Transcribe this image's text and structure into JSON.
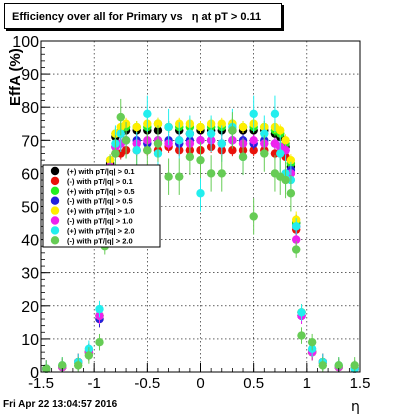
{
  "chart_data": {
    "type": "scatter",
    "title": "Efficiency over all for Primary vs   η at pT > 0.11",
    "xlabel": "η",
    "ylabel": "EffA (%)",
    "xlim": [
      -1.5,
      1.5
    ],
    "ylim": [
      0,
      100
    ],
    "x_ticks": [
      "-1.5",
      "-1",
      "-0.5",
      "0",
      "0.5",
      "1",
      "1.5"
    ],
    "y_ticks": [
      "0",
      "10",
      "20",
      "30",
      "40",
      "50",
      "60",
      "70",
      "80",
      "90",
      "100"
    ],
    "grid": true,
    "legend_position": "middle-left",
    "series": [
      {
        "name": "(+) with pT/|q| > 0.1",
        "color": "#000000",
        "x": [
          -1.45,
          -1.3,
          -1.15,
          -1.05,
          -0.95,
          -0.9,
          -0.85,
          -0.8,
          -0.75,
          -0.7,
          -0.6,
          -0.5,
          -0.4,
          -0.3,
          -0.2,
          -0.1,
          0.0,
          0.1,
          0.2,
          0.3,
          0.4,
          0.5,
          0.6,
          0.7,
          0.75,
          0.8,
          0.85,
          0.9,
          0.95,
          1.05,
          1.15,
          1.3,
          1.45
        ],
        "y": [
          1,
          1.5,
          3,
          6,
          17,
          45,
          63,
          71,
          72,
          73,
          73,
          73,
          73,
          74,
          73,
          72,
          73,
          73,
          73,
          73,
          73,
          73,
          73,
          72,
          71,
          68,
          62,
          45,
          18,
          6,
          3,
          1.5,
          1
        ]
      },
      {
        "name": "(-) with pT/|q| > 0.1",
        "color": "#e8120a",
        "x": [
          -1.45,
          -1.3,
          -1.15,
          -1.05,
          -0.95,
          -0.9,
          -0.85,
          -0.8,
          -0.75,
          -0.7,
          -0.6,
          -0.5,
          -0.4,
          -0.3,
          -0.2,
          -0.1,
          0.0,
          0.1,
          0.2,
          0.3,
          0.4,
          0.5,
          0.6,
          0.7,
          0.75,
          0.8,
          0.85,
          0.9,
          0.95,
          1.05,
          1.15,
          1.3,
          1.45
        ],
        "y": [
          1,
          1.5,
          3,
          6,
          16,
          43,
          61,
          66,
          66,
          67,
          67,
          67,
          67,
          68,
          67,
          67,
          67,
          68,
          67,
          67,
          67,
          67,
          67,
          66,
          66,
          65,
          60,
          43,
          17,
          6,
          3,
          1.5,
          1
        ]
      },
      {
        "name": "(+) with pT/|q| > 0.5",
        "color": "#22ee22",
        "x": [
          -1.45,
          -1.3,
          -1.15,
          -1.05,
          -0.95,
          -0.9,
          -0.85,
          -0.8,
          -0.75,
          -0.7,
          -0.6,
          -0.5,
          -0.4,
          -0.3,
          -0.2,
          -0.1,
          0.0,
          0.1,
          0.2,
          0.3,
          0.4,
          0.5,
          0.6,
          0.7,
          0.75,
          0.8,
          0.85,
          0.9,
          0.95,
          1.05,
          1.15,
          1.3,
          1.45
        ],
        "y": [
          1,
          1.5,
          3,
          6,
          17,
          45,
          64,
          72,
          73,
          74,
          74,
          74,
          75,
          74,
          74,
          74,
          74,
          74,
          74,
          75,
          74,
          74,
          74,
          73,
          72,
          69,
          63,
          45,
          18,
          6,
          3,
          1.5,
          1
        ]
      },
      {
        "name": "(-) with pT/|q| > 0.5",
        "color": "#2222dd",
        "x": [
          -1.45,
          -1.3,
          -1.15,
          -1.05,
          -0.95,
          -0.9,
          -0.85,
          -0.8,
          -0.75,
          -0.7,
          -0.6,
          -0.5,
          -0.4,
          -0.3,
          -0.2,
          -0.1,
          0.0,
          0.1,
          0.2,
          0.3,
          0.4,
          0.5,
          0.6,
          0.7,
          0.75,
          0.8,
          0.85,
          0.9,
          0.95,
          1.05,
          1.15,
          1.3,
          1.45
        ],
        "y": [
          1,
          1.5,
          3,
          6,
          16,
          44,
          62,
          68,
          69,
          70,
          70,
          69,
          70,
          70,
          69,
          70,
          70,
          70,
          69,
          70,
          70,
          69,
          70,
          69,
          68,
          67,
          61,
          44,
          17,
          6,
          3,
          1.5,
          1
        ]
      },
      {
        "name": "(+) with pT/|q| > 1.0",
        "color": "#ffee00",
        "x": [
          -1.45,
          -1.3,
          -1.15,
          -1.05,
          -0.95,
          -0.9,
          -0.85,
          -0.8,
          -0.75,
          -0.7,
          -0.6,
          -0.5,
          -0.4,
          -0.3,
          -0.2,
          -0.1,
          0.0,
          0.1,
          0.2,
          0.3,
          0.4,
          0.5,
          0.6,
          0.7,
          0.75,
          0.8,
          0.85,
          0.9,
          0.95,
          1.05,
          1.15,
          1.3,
          1.45
        ],
        "y": [
          1,
          1.5,
          3,
          6,
          17,
          46,
          64,
          72,
          74,
          75,
          74,
          75,
          75,
          74,
          75,
          75,
          74,
          75,
          75,
          75,
          74,
          75,
          74,
          74,
          73,
          70,
          64,
          46,
          18,
          6,
          3,
          1.5,
          1
        ]
      },
      {
        "name": "(-) with pT/|q| > 1.0",
        "color": "#ee22ee",
        "x": [
          -1.45,
          -1.3,
          -1.15,
          -1.05,
          -0.95,
          -0.9,
          -0.85,
          -0.8,
          -0.75,
          -0.7,
          -0.6,
          -0.5,
          -0.4,
          -0.3,
          -0.2,
          -0.1,
          0.0,
          0.1,
          0.2,
          0.3,
          0.4,
          0.5,
          0.6,
          0.7,
          0.75,
          0.8,
          0.85,
          0.9,
          0.95,
          1.05,
          1.15,
          1.3,
          1.45
        ],
        "y": [
          1,
          1.5,
          3,
          6,
          17,
          44,
          62,
          68,
          69,
          70,
          69,
          70,
          70,
          69,
          70,
          69,
          70,
          70,
          69,
          70,
          69,
          70,
          69,
          69,
          68,
          67,
          60,
          40,
          17,
          6,
          3,
          1.5,
          1
        ]
      },
      {
        "name": "(+) with pT/|q| > 2.0",
        "color": "#22eeee",
        "x": [
          -1.45,
          -1.3,
          -1.15,
          -1.05,
          -0.95,
          -0.9,
          -0.85,
          -0.8,
          -0.75,
          -0.7,
          -0.6,
          -0.5,
          -0.4,
          -0.3,
          -0.2,
          -0.1,
          0.0,
          0.1,
          0.2,
          0.3,
          0.4,
          0.5,
          0.6,
          0.7,
          0.75,
          0.8,
          0.85,
          0.9,
          0.95,
          1.05,
          1.15,
          1.3,
          1.45
        ],
        "y": [
          1,
          2,
          3,
          7,
          19,
          48,
          60,
          69,
          72,
          70,
          67,
          78,
          66,
          74,
          70,
          72,
          54,
          72,
          69,
          74,
          65,
          78,
          72,
          78,
          66,
          60,
          58,
          44,
          18,
          7,
          3,
          2,
          1
        ]
      },
      {
        "name": "(-) with pT/|q| > 2.0",
        "color": "#66cc55",
        "x": [
          -1.45,
          -1.3,
          -1.15,
          -1.05,
          -0.95,
          -0.9,
          -0.85,
          -0.8,
          -0.75,
          -0.7,
          -0.6,
          -0.5,
          -0.4,
          -0.3,
          -0.2,
          -0.1,
          0.0,
          0.1,
          0.2,
          0.3,
          0.4,
          0.5,
          0.6,
          0.7,
          0.75,
          0.8,
          0.85,
          0.9,
          0.95,
          1.05,
          1.15,
          1.3,
          1.45
        ],
        "y": [
          1,
          2,
          2,
          5,
          9,
          38,
          60,
          66,
          77,
          70,
          60,
          67,
          69,
          59,
          59,
          65,
          64,
          60,
          60,
          73,
          65,
          47,
          66,
          60,
          59,
          58,
          54,
          37,
          11,
          9,
          2,
          2,
          2
        ]
      }
    ]
  },
  "footer": {
    "timestamp": "Fri Apr 22 13:04:57 2016"
  }
}
